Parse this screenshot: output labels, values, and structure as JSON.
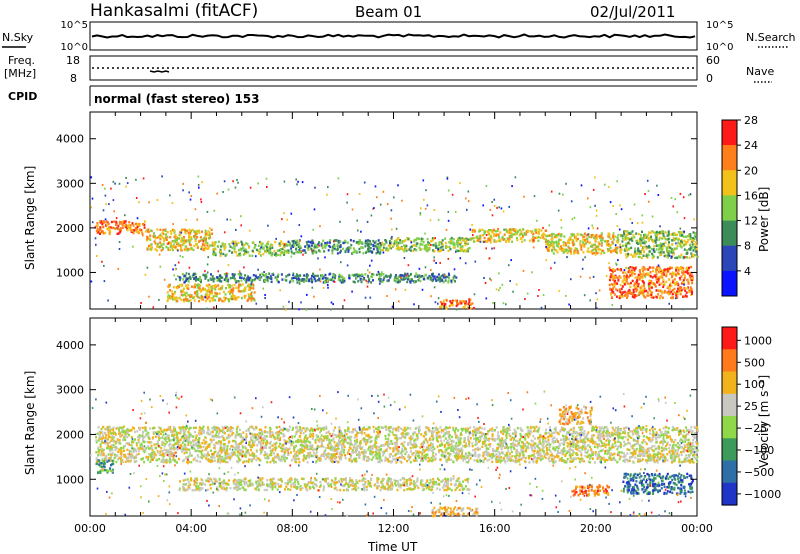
{
  "header": {
    "station": "Hankasalmi (fitACF)",
    "beam": "Beam 01",
    "date": "02/Jul/2011"
  },
  "top_panels": {
    "nsky_label": "N.Sky",
    "nsky_ticks": [
      "10^5",
      "10^0"
    ],
    "nsearch_label": "N.Search",
    "nsearch_ticks": [
      "10^5",
      "10^0"
    ],
    "freq_label": "Freq.",
    "freq_unit": "[MHz]",
    "freq_ticks": [
      "18",
      "8"
    ],
    "nave_label": "Nave",
    "nave_ticks": [
      "60",
      "0"
    ],
    "cpid_label": "CPID",
    "cpid_text": "normal (fast stereo) 153"
  },
  "chart_data": [
    {
      "type": "heatmap",
      "name": "power-panel",
      "ylabel": "Slant Range [km]",
      "yticks": [
        "1000",
        "2000",
        "3000",
        "4000"
      ],
      "ytick_values": [
        1000,
        2000,
        3000,
        4000
      ],
      "ylim": [
        180,
        4600
      ],
      "xlim": [
        0,
        24
      ],
      "colorbar_label": "Power [dB]",
      "colorbar_ticks": [
        "4",
        "8",
        "12",
        "16",
        "20",
        "24",
        "28"
      ],
      "colorbar_colors": [
        "#0a14ff",
        "#2a46b8",
        "#3c8c5a",
        "#7fcf4a",
        "#f2c21a",
        "#ff7f1a",
        "#ff1a1a"
      ],
      "bands": [
        {
          "t0": 0.2,
          "t1": 2.2,
          "r0": 1880,
          "r1": 2180,
          "level": 5
        },
        {
          "t0": 2.2,
          "t1": 4.8,
          "r0": 1520,
          "r1": 2000,
          "level": 4
        },
        {
          "t0": 4.8,
          "t1": 7.8,
          "r0": 1400,
          "r1": 1720,
          "level": 3
        },
        {
          "t0": 7.8,
          "t1": 11.5,
          "r0": 1450,
          "r1": 1750,
          "level": 2
        },
        {
          "t0": 11.5,
          "t1": 15.0,
          "r0": 1500,
          "r1": 1800,
          "level": 3
        },
        {
          "t0": 15.0,
          "t1": 18.0,
          "r0": 1700,
          "r1": 2000,
          "level": 4
        },
        {
          "t0": 18.0,
          "t1": 21.0,
          "r0": 1450,
          "r1": 1900,
          "level": 4
        },
        {
          "t0": 21.0,
          "t1": 24.0,
          "r0": 1350,
          "r1": 1950,
          "level": 3
        },
        {
          "t0": 3.0,
          "t1": 6.5,
          "r0": 380,
          "r1": 760,
          "level": 4
        },
        {
          "t0": 3.5,
          "t1": 14.5,
          "r0": 800,
          "r1": 1000,
          "level": 2
        },
        {
          "t0": 20.5,
          "t1": 23.8,
          "r0": 450,
          "r1": 1150,
          "level": 5
        },
        {
          "t0": 13.8,
          "t1": 15.2,
          "r0": 220,
          "r1": 420,
          "level": 5
        }
      ]
    },
    {
      "type": "heatmap",
      "name": "velocity-panel",
      "ylabel": "Slant Range [km]",
      "yticks": [
        "1000",
        "2000",
        "3000",
        "4000"
      ],
      "ytick_values": [
        1000,
        2000,
        3000,
        4000
      ],
      "ylim": [
        180,
        4600
      ],
      "xlim": [
        0,
        24
      ],
      "xticks": [
        "00:00",
        "04:00",
        "08:00",
        "12:00",
        "16:00",
        "20:00",
        "00:00"
      ],
      "xtick_values": [
        0,
        4,
        8,
        12,
        16,
        20,
        24
      ],
      "xlabel": "Time UT",
      "colorbar_label": "Velocity [m s⁻¹]",
      "colorbar_ticks": [
        "1000",
        "500",
        "100",
        "25",
        "−25",
        "−100",
        "−500",
        "−1000"
      ],
      "colorbar_colors": [
        "#2034c8",
        "#2e6fa8",
        "#3c9a5a",
        "#8fd84a",
        "#c8c8c0",
        "#f2b21a",
        "#ff7a1a",
        "#ff1a1a"
      ],
      "bands": [
        {
          "t0": 0.2,
          "t1": 24.0,
          "r0": 1400,
          "r1": 2200,
          "level": 4
        },
        {
          "t0": 3.5,
          "t1": 15.0,
          "r0": 780,
          "r1": 1050,
          "level": 4
        },
        {
          "t0": 0.2,
          "t1": 0.9,
          "r0": 1150,
          "r1": 1450,
          "level": 2
        },
        {
          "t0": 21.0,
          "t1": 23.8,
          "r0": 700,
          "r1": 1150,
          "level": 1
        },
        {
          "t0": 19.0,
          "t1": 20.5,
          "r0": 650,
          "r1": 900,
          "level": 6
        },
        {
          "t0": 18.5,
          "t1": 19.8,
          "r0": 2250,
          "r1": 2650,
          "level": 5
        },
        {
          "t0": 13.5,
          "t1": 15.3,
          "r0": 200,
          "r1": 400,
          "level": 5
        }
      ]
    }
  ]
}
